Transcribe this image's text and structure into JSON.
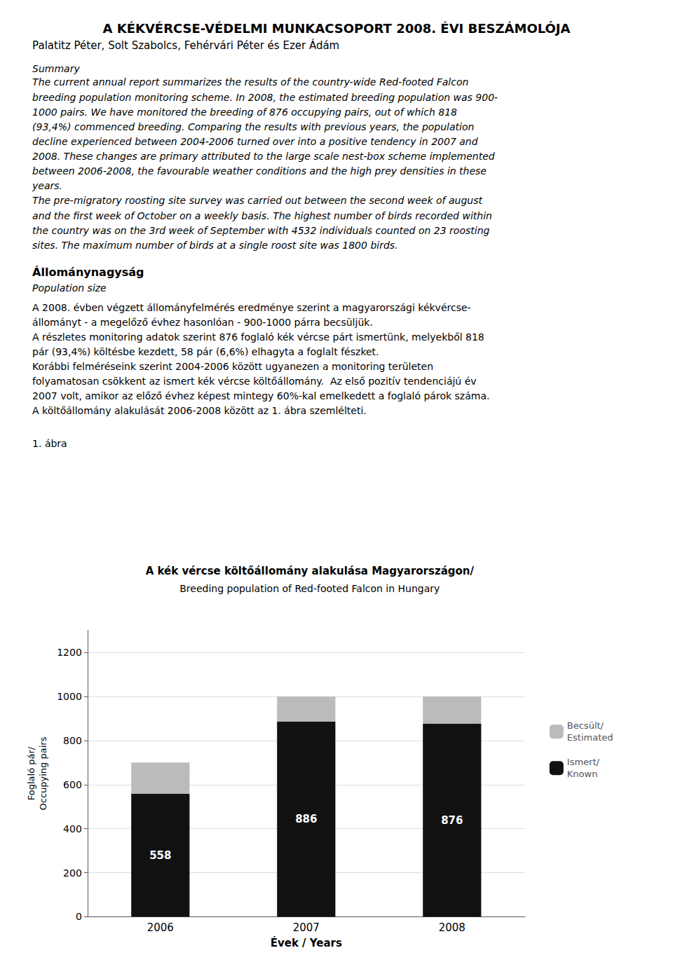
{
  "chart_data": {
    "type": "bar",
    "title": "A kék vércse költőállomány alakulása Magyarországon/",
    "subtitle": "Breeding population of Red-footed Falcon in Hungary",
    "categories": [
      "2006",
      "2007",
      "2008"
    ],
    "series": [
      {
        "name": "Ismert/\nKnown",
        "color": "#111111",
        "values": [
          558,
          886,
          876
        ],
        "data_labels": true
      },
      {
        "name": "Becsült/\nEstimated",
        "color": "#bbbbbb",
        "values": [
          142,
          114,
          124
        ]
      }
    ],
    "stacked": true,
    "xlabel": "Évek / Years",
    "ylabel": "Foglaló pár/\nOccupying pairs",
    "ylim": [
      0,
      1300
    ],
    "yticks": [
      0,
      200,
      400,
      600,
      800,
      1000,
      1200
    ],
    "grid": true,
    "legend": "right",
    "annotations": [
      [
        "A KÉKVÉRCSE-VÉDELMI MUNKACSOPORT 2008. ÉVI BESZÁMOLÓJA"
      ],
      [
        "Palatitz Péter, Solt Szabolcs, Fehérvári Péter és Ezer Ádám"
      ],
      [
        "Summary"
      ],
      [
        "The current annual report summarizes the results of the country-wide Red-footed Falcon",
        "breeding population monitoring scheme. In 2008, the estimated breeding population was 900-",
        "1000 pairs. We have monitored the breeding of 876 occupying pairs, out of which 818",
        "(93,4%) commenced breeding. Comparing the results with previous years, the population",
        "decline experienced between 2004-2006 turned over into a positive tendency in 2007 and",
        "2008. These changes are primary attributed to the large scale nest-box scheme implemented",
        "between 2006-2008, the favourable weather conditions and the high prey densities in these",
        "years."
      ],
      [
        "The pre-migratory roosting site survey was carried out between the second week of august",
        "and the first week of October on a weekly basis. The highest number of birds recorded within",
        "the country was on the 3rd week of September with 4532 individuals counted on 23 roosting",
        "sites. The maximum number of birds at a single roost site was 1800 birds."
      ],
      [
        "Állománynagyság"
      ],
      [
        "Population size"
      ],
      [
        "A 2008. évben végzett állományfelmérés eredménye szerint a magyarországi kékvércse-",
        "állományt - a megelőző évhez hasonlóan - 900-1000 párra becsüljük."
      ],
      [
        "A részletes monitoring adatok szerint 876 foglaló kék vércse párt ismertünk, melyekből 818",
        "pár (93,4%) költésbe kezdett, 58 pár (6,6%) elhagyta a foglalt fészket."
      ],
      [
        "Korábbi felméréseink szerint 2004-2006 között ugyanezen a monitoring területen",
        "folyamatosan csökkent az ismert kék vércse költőállomány.  Az első pozitív tendenciájú év",
        "2007 volt, amikor az előző évhez képest mintegy 60%-kal emelkedett a foglaló párok száma."
      ],
      [
        "A költőállomány alakulását 2006-2008 között az 1. ábra szemlélteti."
      ],
      [
        "1. ábra"
      ]
    ]
  }
}
